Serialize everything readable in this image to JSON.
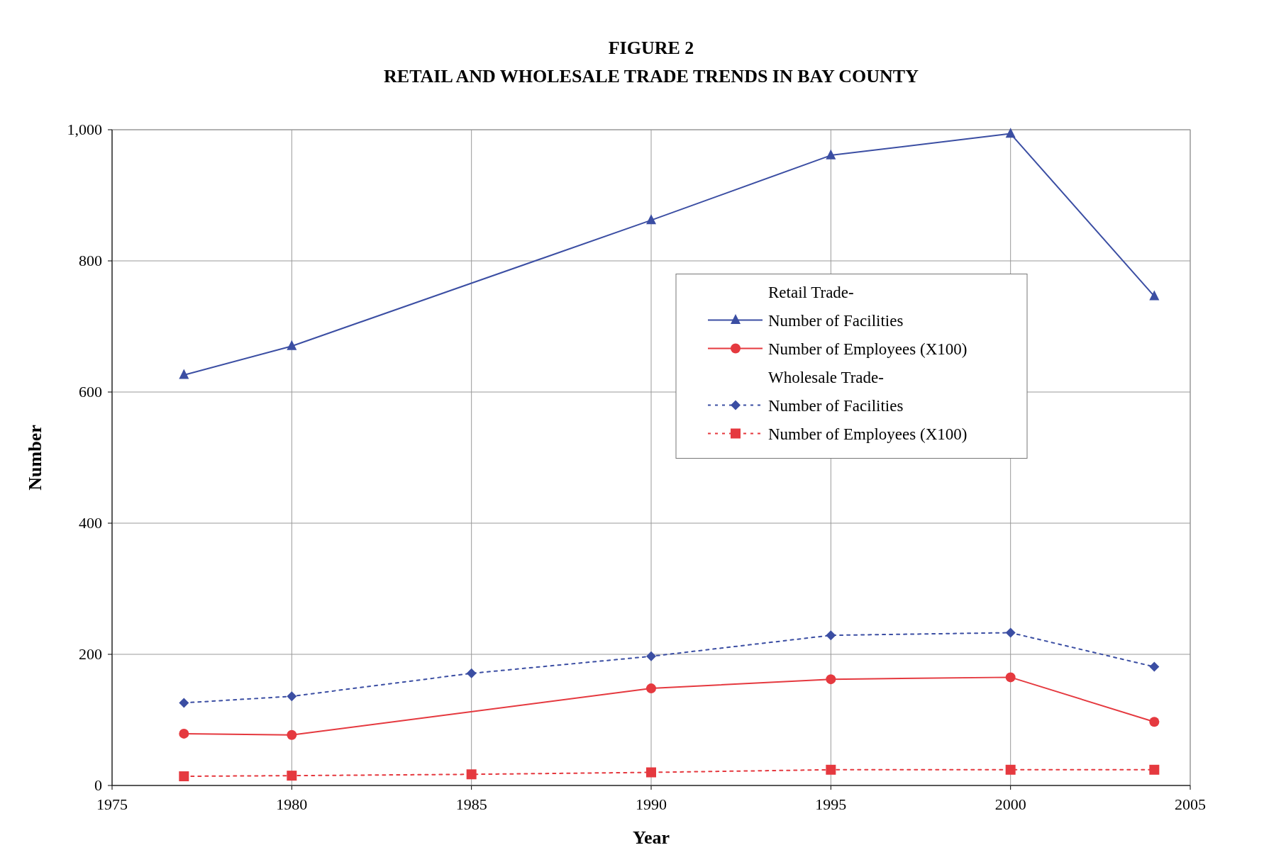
{
  "chart_data": {
    "type": "line",
    "title": "FIGURE 2",
    "subtitle": "RETAIL AND WHOLESALE TRADE TRENDS IN BAY COUNTY",
    "xlabel": "Year",
    "ylabel": "Number",
    "xlim": [
      1975,
      2005
    ],
    "xticks": [
      1975,
      1980,
      1985,
      1990,
      1995,
      2000,
      2005
    ],
    "ylim": [
      0,
      1000
    ],
    "yticks": [
      0,
      200,
      400,
      600,
      800,
      {
        "value": 1000,
        "label": "1,000"
      }
    ],
    "grid": true,
    "legend": "right",
    "annotations": [
      "Retail Trade-",
      "Wholesale Trade-"
    ],
    "series": [
      {
        "name": "Number of Facilities",
        "color": "#3b4ea3",
        "marker": "triangle",
        "line_style": "solid",
        "x": [
          1977,
          1980,
          1990,
          1995,
          2000,
          2004
        ],
        "values": [
          626,
          670,
          862,
          961,
          994,
          746
        ]
      },
      {
        "name": "Number of Employees (X100)",
        "color": "#e5393f",
        "marker": "circle",
        "line_style": "solid",
        "x": [
          1977,
          1980,
          1990,
          1995,
          2000,
          2004
        ],
        "values": [
          79,
          77,
          148,
          162,
          165,
          97
        ]
      },
      {
        "name": "Number of Facilities",
        "color": "#3b4ea3",
        "marker": "diamond",
        "line_style": "dotted",
        "x": [
          1977,
          1980,
          1985,
          1990,
          1995,
          2000,
          2004
        ],
        "values": [
          126,
          136,
          171,
          197,
          229,
          233,
          181
        ]
      },
      {
        "name": "Number of Employees (X100)",
        "color": "#e5393f",
        "marker": "square",
        "line_style": "dotted",
        "x": [
          1977,
          1980,
          1985,
          1990,
          1995,
          2000,
          2004
        ],
        "values": [
          14,
          15,
          17,
          20,
          24,
          24,
          24
        ]
      }
    ]
  }
}
